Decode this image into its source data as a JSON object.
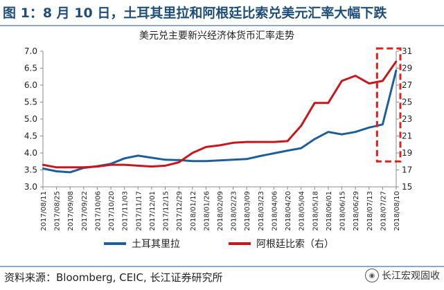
{
  "figure": {
    "title": "图 1：8 月 10 日，土耳其里拉和阿根廷比索兑美元汇率大幅下跌",
    "source": "资料来源：Bloomberg, CEIC, 长江证券研究所",
    "watermark": "长江宏观固收",
    "watermark_icon": "wechat-icon"
  },
  "chart_data": {
    "type": "line",
    "title": "美元兑主要新兴经济体货币汇率走势",
    "xlabel": "",
    "ylabel": "",
    "y_left": {
      "min": 3.0,
      "max": 7.0,
      "ticks": [
        "3.0",
        "3.5",
        "4.0",
        "4.5",
        "5.0",
        "5.5",
        "6.0",
        "6.5",
        "7.0"
      ]
    },
    "y_right": {
      "min": 15,
      "max": 31,
      "ticks": [
        "15",
        "17",
        "19",
        "21",
        "23",
        "25",
        "27",
        "29",
        "31"
      ]
    },
    "x_tick_labels": [
      "2017/08/11",
      "2017/08/25",
      "2017/09/08",
      "2017/09/22",
      "2017/10/06",
      "2017/10/20",
      "2017/11/03",
      "2017/11/17",
      "2017/12/01",
      "2017/12/15",
      "2017/12/29",
      "2018/01/12",
      "2018/01/26",
      "2018/02/09",
      "2018/02/23",
      "2018/03/09",
      "2018/03/23",
      "2018/04/06",
      "2018/04/20",
      "2018/05/04",
      "2018/05/18",
      "2018/06/01",
      "2018/06/15",
      "2018/06/29",
      "2018/07/13",
      "2018/07/27",
      "2018/08/10"
    ],
    "grid": false,
    "legend_position": "bottom",
    "colors": {
      "try": "#1f5f99",
      "ars": "#c8161d",
      "highlight": "#e0201b"
    },
    "highlight_box": {
      "x_start": "2018/07/27",
      "x_end": "2018/08/10",
      "style": "dashed"
    },
    "series": [
      {
        "name": "土耳其里拉",
        "axis": "left",
        "values": [
          3.54,
          3.46,
          3.43,
          3.56,
          3.61,
          3.68,
          3.84,
          3.92,
          3.86,
          3.8,
          3.79,
          3.76,
          3.76,
          3.78,
          3.8,
          3.82,
          3.91,
          3.99,
          4.07,
          4.14,
          4.41,
          4.62,
          4.55,
          4.62,
          4.75,
          4.84,
          6.44
        ]
      },
      {
        "name": "阿根廷比索（右）",
        "axis": "right",
        "values": [
          17.6,
          17.3,
          17.3,
          17.3,
          17.4,
          17.6,
          17.6,
          17.5,
          17.4,
          17.5,
          17.9,
          19.0,
          19.7,
          19.9,
          20.2,
          20.3,
          20.3,
          20.3,
          20.4,
          22.2,
          24.9,
          24.9,
          27.5,
          28.1,
          27.2,
          27.5,
          29.8
        ]
      }
    ]
  }
}
